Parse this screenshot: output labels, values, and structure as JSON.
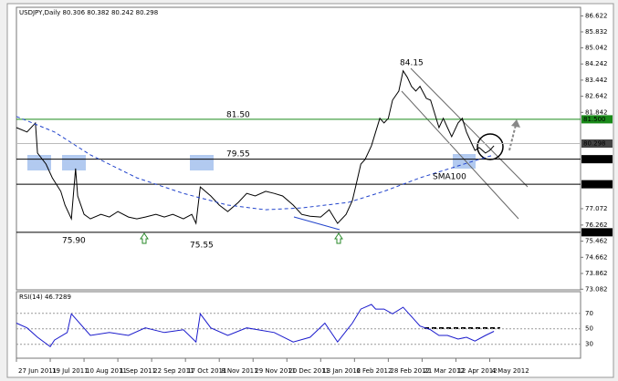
{
  "chart_data": [
    {
      "type": "line",
      "title": "USDJPY,Daily  80.306 80.382 80.242 80.298",
      "xlim": [
        0,
        267
      ],
      "ylim": [
        73.05,
        87.05
      ],
      "yticks": [
        86.622,
        85.832,
        85.042,
        84.242,
        83.442,
        82.642,
        81.842,
        77.072,
        76.262,
        75.462,
        74.662,
        73.862,
        73.082
      ],
      "xticks": [
        {
          "value": 0,
          "label": "27 Jun 2011"
        },
        {
          "value": 16,
          "label": "19 Jul 2011"
        },
        {
          "value": 32,
          "label": "10 Aug 2011"
        },
        {
          "value": 48,
          "label": "1 Sep 2011"
        },
        {
          "value": 64,
          "label": "22 Sep 2011"
        },
        {
          "value": 80,
          "label": "17 Oct 2011"
        },
        {
          "value": 96,
          "label": "8 Nov 2011"
        },
        {
          "value": 112,
          "label": "29 Nov 2011"
        },
        {
          "value": 128,
          "label": "20 Dec 2011"
        },
        {
          "value": 144,
          "label": "13 Jan 2012"
        },
        {
          "value": 160,
          "label": "6 Feb 2012"
        },
        {
          "value": 176,
          "label": "28 Feb 2012"
        },
        {
          "value": 192,
          "label": "21 Mar 2012"
        },
        {
          "value": 208,
          "label": "12 Apr 2012"
        },
        {
          "value": 224,
          "label": "4 May 2012"
        }
      ],
      "series": [
        {
          "color": "#000000",
          "x": [
            0,
            5,
            9,
            10,
            14,
            17,
            21,
            23,
            26,
            28,
            29,
            32,
            35,
            40,
            44,
            48,
            53,
            57,
            61,
            66,
            70,
            74,
            79,
            83,
            85,
            87,
            92,
            96,
            100,
            105,
            109,
            113,
            118,
            122,
            126,
            131,
            135,
            139,
            144,
            148,
            152,
            156,
            159,
            161,
            163,
            165,
            168,
            170,
            172,
            174,
            176,
            178,
            181,
            183,
            185,
            187,
            189,
            191,
            194,
            196,
            198,
            200,
            202,
            204,
            206,
            209,
            211,
            213,
            215,
            217,
            219,
            222,
            224,
            226
          ],
          "values": [
            81.09,
            80.87,
            81.32,
            79.83,
            79.28,
            78.6,
            77.93,
            77.25,
            76.57,
            79.06,
            77.7,
            76.79,
            76.57,
            76.79,
            76.66,
            76.93,
            76.66,
            76.57,
            76.66,
            76.79,
            76.66,
            76.79,
            76.57,
            76.79,
            76.34,
            78.15,
            77.7,
            77.25,
            76.93,
            77.38,
            77.83,
            77.7,
            77.93,
            77.83,
            77.7,
            77.25,
            76.79,
            76.7,
            76.66,
            77.02,
            76.34,
            76.79,
            77.47,
            78.38,
            79.28,
            79.51,
            80.19,
            80.87,
            81.55,
            81.32,
            81.55,
            82.45,
            82.9,
            83.9,
            83.58,
            83.13,
            82.9,
            83.13,
            82.54,
            82.45,
            81.77,
            81.09,
            81.55,
            81.09,
            80.64,
            81.32,
            81.55,
            80.87,
            80.41,
            79.96,
            80.1,
            79.83,
            79.96,
            80.19
          ]
        },
        {
          "name": "SMA100",
          "color": "#2244cc",
          "dashed": true,
          "x": [
            0,
            18,
            35,
            57,
            79,
            100,
            118,
            135,
            157,
            174,
            191,
            209,
            226
          ],
          "values": [
            81.64,
            80.87,
            79.74,
            78.6,
            77.83,
            77.25,
            77.02,
            77.11,
            77.38,
            77.93,
            78.6,
            79.19,
            79.74
          ]
        }
      ],
      "levels": [
        {
          "value": 81.5,
          "label": "81.500",
          "color": "#1a8a1a"
        },
        {
          "value": 80.298,
          "label": "80.298",
          "color": "#bbbbbb"
        },
        {
          "value": 79.524,
          "label": "79.524",
          "color": "#000000"
        },
        {
          "value": 78.283,
          "label": "78.283",
          "color": "#000000"
        },
        {
          "value": 75.902,
          "label": "75.902",
          "color": "#000000"
        }
      ],
      "annotations": [
        {
          "text": "84.15",
          "color": "#555555"
        },
        {
          "text": "81.50",
          "color": "#2a8a2a"
        },
        {
          "text": "79.55",
          "color": "#7755aa"
        },
        {
          "text": "75.90",
          "color": "#2a8a2a"
        },
        {
          "text": "75.55",
          "color": "#2a8a2a"
        }
      ]
    },
    {
      "type": "line",
      "title": "RSI(14) 46.7289",
      "xlim": [
        0,
        267
      ],
      "ylim": [
        12,
        98
      ],
      "yticks": [
        70,
        50,
        30
      ],
      "color": "#1a1acc",
      "x": [
        0,
        5,
        10,
        16,
        18,
        24,
        26,
        35,
        44,
        53,
        61,
        70,
        79,
        85,
        87,
        92,
        100,
        109,
        122,
        131,
        139,
        146,
        152,
        159,
        163,
        168,
        170,
        174,
        178,
        183,
        187,
        191,
        196,
        200,
        204,
        209,
        213,
        217,
        222,
        226
      ],
      "values": [
        57.3,
        51.2,
        39.1,
        27,
        35.5,
        45.2,
        69.4,
        41.5,
        45.2,
        41.5,
        51.2,
        45.2,
        48.8,
        33,
        69.4,
        51.2,
        41.5,
        51.2,
        45.2,
        33,
        39.1,
        57.3,
        33,
        57.3,
        75.5,
        81.5,
        75.5,
        75.5,
        69.4,
        77.9,
        65.8,
        53.6,
        48.8,
        41.5,
        41.5,
        36.7,
        39.1,
        34.2,
        41.5,
        46.73
      ]
    }
  ]
}
